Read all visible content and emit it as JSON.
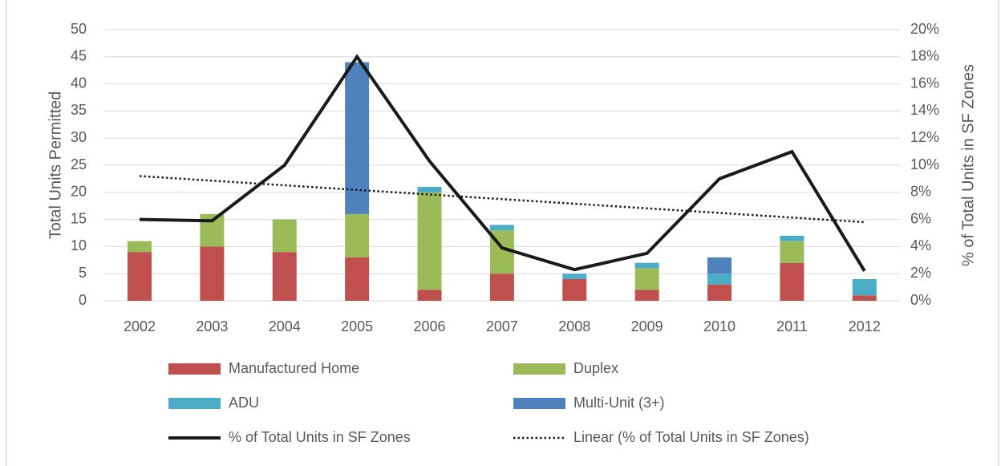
{
  "chart_data": {
    "type": "bar",
    "stacked": true,
    "y_label": "Total Units Permitted",
    "y2_label": "% of Total Units in SF Zones",
    "categories": [
      "2002",
      "2003",
      "2004",
      "2005",
      "2006",
      "2007",
      "2008",
      "2009",
      "2010",
      "2011",
      "2012"
    ],
    "series": [
      {
        "name": "Manufactured Home",
        "color": "#c0504d",
        "values": [
          9,
          10,
          9,
          8,
          2,
          5,
          4,
          2,
          3,
          7,
          1
        ]
      },
      {
        "name": "Duplex",
        "color": "#9bbb59",
        "values": [
          2,
          6,
          6,
          8,
          18,
          8,
          0,
          4,
          0,
          4,
          0
        ]
      },
      {
        "name": "ADU",
        "color": "#4bacc6",
        "values": [
          0,
          0,
          0,
          0,
          1,
          1,
          1,
          1,
          2,
          1,
          3
        ]
      },
      {
        "name": "Multi-Unit (3+)",
        "color": "#4f81bd",
        "values": [
          0,
          0,
          0,
          28,
          0,
          0,
          0,
          0,
          3,
          0,
          0
        ]
      },
      {
        "name": "% of Total Units in SF Zones",
        "type": "line",
        "axis": "y2",
        "color": "#1a1a1a",
        "line_style": "solid",
        "values": [
          6.0,
          5.9,
          10.0,
          18.0,
          10.3,
          3.9,
          2.3,
          3.5,
          9.0,
          11.0,
          2.2
        ]
      },
      {
        "name": "Linear (% of Total Units in SF Zones)",
        "type": "line",
        "axis": "y2",
        "color": "#1a1a1a",
        "line_style": "dotted",
        "values": [
          9.2,
          8.86,
          8.52,
          8.18,
          7.84,
          7.5,
          7.16,
          6.82,
          6.48,
          6.14,
          5.8
        ]
      }
    ],
    "ylim": [
      0,
      50
    ],
    "yticks": [
      0,
      5,
      10,
      15,
      20,
      25,
      30,
      35,
      40,
      45,
      50
    ],
    "y2lim": [
      0,
      20
    ],
    "y2ticks": [
      {
        "value": 0,
        "label": "0%"
      },
      {
        "value": 2,
        "label": "2%"
      },
      {
        "value": 4,
        "label": "4%"
      },
      {
        "value": 6,
        "label": "6%"
      },
      {
        "value": 8,
        "label": "8%"
      },
      {
        "value": 10,
        "label": "10%"
      },
      {
        "value": 12,
        "label": "12%"
      },
      {
        "value": 14,
        "label": "14%"
      },
      {
        "value": 16,
        "label": "16%"
      },
      {
        "value": 18,
        "label": "18%"
      },
      {
        "value": 20,
        "label": "20%"
      }
    ],
    "grid": true,
    "legend": "bottom"
  }
}
